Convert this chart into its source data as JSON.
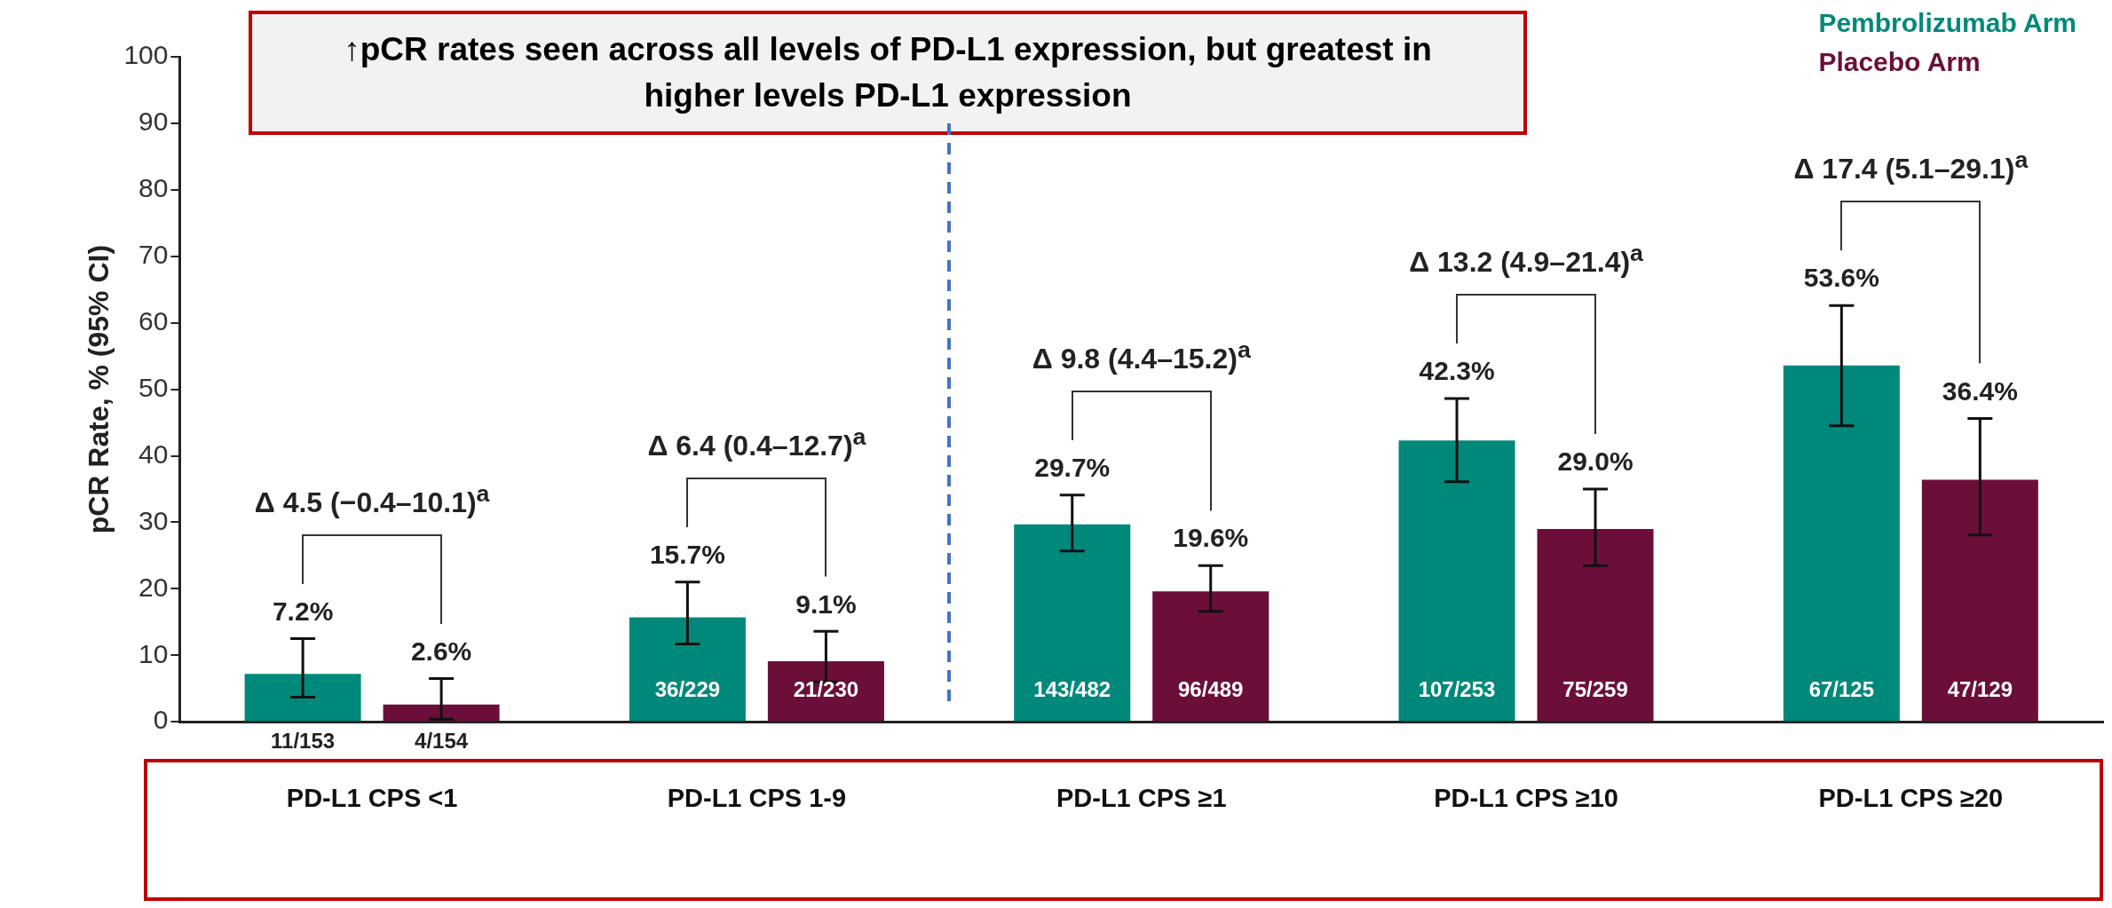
{
  "chart_data": {
    "type": "bar",
    "title": "↑pCR rates seen across all levels of PD-L1 expression, but greatest in higher levels PD-L1 expression",
    "ylabel": "pCR Rate, % (95% CI)",
    "categories": [
      "PD-L1 CPS <1",
      "PD-L1 CPS 1-9",
      "PD-L1 CPS ≥1",
      "PD-L1 CPS ≥10",
      "PD-L1 CPS ≥20"
    ],
    "series": [
      {
        "name": "Pembrolizumab Arm",
        "color": "#00897b",
        "values": [
          7.2,
          15.7,
          29.7,
          42.3,
          53.6
        ],
        "value_labels": [
          "7.2%",
          "15.7%",
          "29.7%",
          "42.3%",
          "53.6%"
        ],
        "errors": [
          [
            3.7,
            12.5
          ],
          [
            11.7,
            21.0
          ],
          [
            25.7,
            34.1
          ],
          [
            36.1,
            48.6
          ],
          [
            44.5,
            62.6
          ]
        ]
      },
      {
        "name": "Placebo Arm",
        "color": "#6b0f3a",
        "values": [
          2.6,
          9.1,
          19.6,
          29.0,
          36.4
        ],
        "value_labels": [
          "2.6%",
          "9.1%",
          "19.6%",
          "29.0%",
          "36.4%"
        ],
        "errors": [
          [
            0.4,
            6.5
          ],
          [
            6.0,
            13.6
          ],
          [
            16.6,
            23.5
          ],
          [
            23.5,
            35.0
          ],
          [
            28.1,
            45.6
          ]
        ]
      }
    ],
    "ylim": [
      0,
      100
    ],
    "yticks": [
      0,
      10,
      20,
      30,
      40,
      50,
      60,
      70,
      80,
      90,
      100
    ],
    "grid": false,
    "legend": "top right",
    "annotations": [
      "Δ 4.5 (−0.4–10.1)$^{a}$",
      "Δ 6.4 (0.4–12.7)$^{a}$",
      "Δ 9.8 (4.4–15.2)$^{a}$",
      "Δ 13.2 (4.9–21.4)$^{a}$",
      "Δ 17.4 (5.1–29.1)$^{a}$",
      "11/153",
      "4/154",
      "36/229",
      "21/230",
      "143/482",
      "96/489",
      "107/253",
      "75/259",
      "67/125",
      "47/129"
    ]
  }
}
